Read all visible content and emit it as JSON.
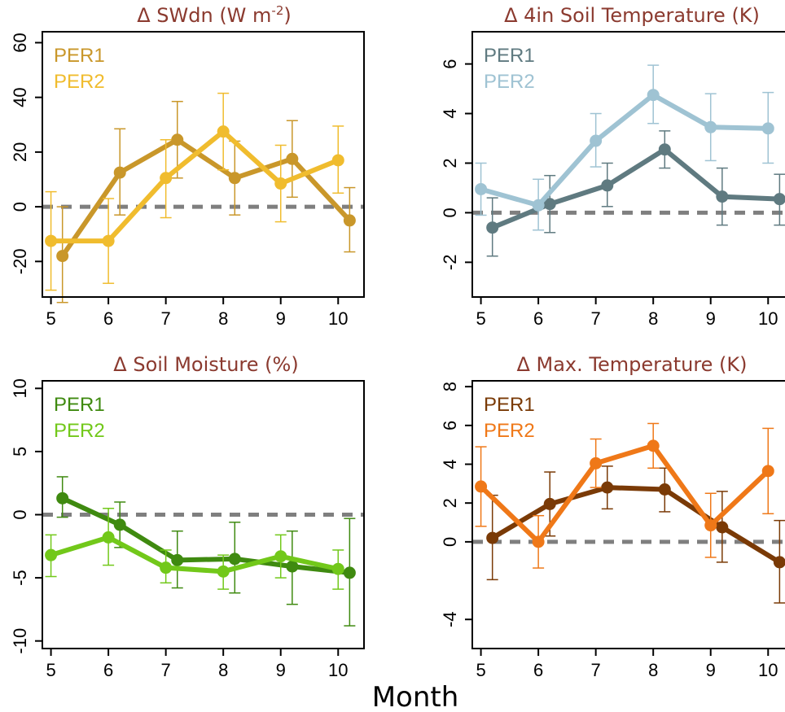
{
  "figure": {
    "xlabel": "Month"
  },
  "chart_data": [
    {
      "type": "line",
      "title": "Δ SWdn (W m",
      "title_sup": "-2",
      "title_end": ")",
      "x": [
        5,
        6,
        7,
        8,
        9,
        10
      ],
      "xlim": [
        4.85,
        10.45
      ],
      "ylim": [
        -33,
        64
      ],
      "yticks": [
        "-20",
        "0",
        "20",
        "40",
        "60"
      ],
      "ytick_values": [
        -20,
        0,
        20,
        40,
        60
      ],
      "reference_line": 0,
      "grid": false,
      "legend_position": "top-left",
      "series": [
        {
          "name": "PER1",
          "color": "#c9972a",
          "x_offset": 0.2,
          "values": [
            -18,
            12.5,
            24.5,
            10.5,
            17.5,
            -5
          ],
          "err_low": [
            -35,
            -3,
            10.5,
            -3,
            3.5,
            -16.5
          ],
          "err_high": [
            0,
            28.5,
            38.5,
            24,
            31.5,
            7
          ]
        },
        {
          "name": "PER2",
          "color": "#f0bc2e",
          "x_offset": 0,
          "values": [
            -12.5,
            -12.5,
            10.5,
            27.5,
            8.5,
            17
          ],
          "err_low": [
            -30.5,
            -28,
            -4,
            13.5,
            -5.5,
            5
          ],
          "err_high": [
            5.5,
            3,
            24.5,
            41.5,
            22.5,
            29.5
          ]
        }
      ]
    },
    {
      "type": "line",
      "title": "Δ 4in Soil Temperature (K)",
      "x": [
        5,
        6,
        7,
        8,
        9,
        10
      ],
      "xlim": [
        4.85,
        10.45
      ],
      "ylim": [
        -3.4,
        7.3
      ],
      "yticks": [
        "-2",
        "0",
        "2",
        "4",
        "6"
      ],
      "ytick_values": [
        -2,
        0,
        2,
        4,
        6
      ],
      "reference_line": 0,
      "grid": false,
      "legend_position": "top-left",
      "series": [
        {
          "name": "PER1",
          "color": "#5f7a80",
          "x_offset": 0.2,
          "values": [
            -0.6,
            0.35,
            1.1,
            2.55,
            0.65,
            0.55
          ],
          "err_low": [
            -1.75,
            -0.8,
            0.25,
            1.8,
            -0.5,
            -0.5
          ],
          "err_high": [
            0.6,
            1.5,
            2.0,
            3.3,
            1.8,
            1.55
          ]
        },
        {
          "name": "PER2",
          "color": "#9fc3d3",
          "x_offset": 0,
          "values": [
            0.95,
            0.3,
            2.9,
            4.75,
            3.45,
            3.4
          ],
          "err_low": [
            -0.1,
            -0.7,
            1.85,
            3.6,
            2.1,
            2.0
          ],
          "err_high": [
            2.0,
            1.35,
            4.0,
            5.95,
            4.8,
            4.85
          ]
        }
      ]
    },
    {
      "type": "line",
      "title": "Δ Soil Moisture (%)",
      "x": [
        5,
        6,
        7,
        8,
        9,
        10
      ],
      "xlim": [
        4.85,
        10.45
      ],
      "ylim": [
        -10.6,
        10.6
      ],
      "yticks": [
        "-10",
        "-5",
        "0",
        "5",
        "10"
      ],
      "ytick_values": [
        -10,
        -5,
        0,
        5,
        10
      ],
      "reference_line": 0,
      "grid": false,
      "legend_position": "top-left",
      "series": [
        {
          "name": "PER1",
          "color": "#3f8a10",
          "x_offset": 0.2,
          "values": [
            1.3,
            -0.8,
            -3.6,
            -3.5,
            -4.1,
            -4.6
          ],
          "err_low": [
            -0.2,
            -2.6,
            -5.8,
            -6.2,
            -7.1,
            -8.8
          ],
          "err_high": [
            3.0,
            1.0,
            -1.3,
            -0.6,
            -1.3,
            -0.3
          ]
        },
        {
          "name": "PER2",
          "color": "#72c81a",
          "x_offset": 0,
          "values": [
            -3.2,
            -1.8,
            -4.2,
            -4.5,
            -3.3,
            -4.3
          ],
          "err_low": [
            -4.9,
            -4.0,
            -5.4,
            -5.9,
            -5.0,
            -5.9
          ],
          "err_high": [
            -1.6,
            0.5,
            -2.8,
            -3.2,
            -1.6,
            -2.8
          ]
        }
      ]
    },
    {
      "type": "line",
      "title": "Δ Max. Temperature (K)",
      "x": [
        5,
        6,
        7,
        8,
        9,
        10
      ],
      "xlim": [
        4.85,
        10.45
      ],
      "ylim": [
        -5.5,
        8.3
      ],
      "yticks": [
        "-4",
        "0",
        "2",
        "4",
        "6",
        "8"
      ],
      "ytick_values": [
        -4,
        0,
        2,
        4,
        6,
        8
      ],
      "reference_line": 0,
      "grid": false,
      "legend_position": "top-left",
      "series": [
        {
          "name": "PER1",
          "color": "#7a3a06",
          "x_offset": 0.2,
          "values": [
            0.2,
            1.95,
            2.8,
            2.7,
            0.75,
            -1.05
          ],
          "err_low": [
            -1.95,
            0.3,
            1.7,
            1.55,
            -1.05,
            -3.15
          ],
          "err_high": [
            2.4,
            3.6,
            3.9,
            3.8,
            2.6,
            1.1
          ]
        },
        {
          "name": "PER2",
          "color": "#ef7818",
          "x_offset": 0,
          "values": [
            2.85,
            0.0,
            4.05,
            4.95,
            0.85,
            3.65
          ],
          "err_low": [
            0.8,
            -1.35,
            2.8,
            3.8,
            -0.8,
            1.45
          ],
          "err_high": [
            4.9,
            1.35,
            5.3,
            6.1,
            2.5,
            5.85
          ]
        }
      ]
    }
  ]
}
